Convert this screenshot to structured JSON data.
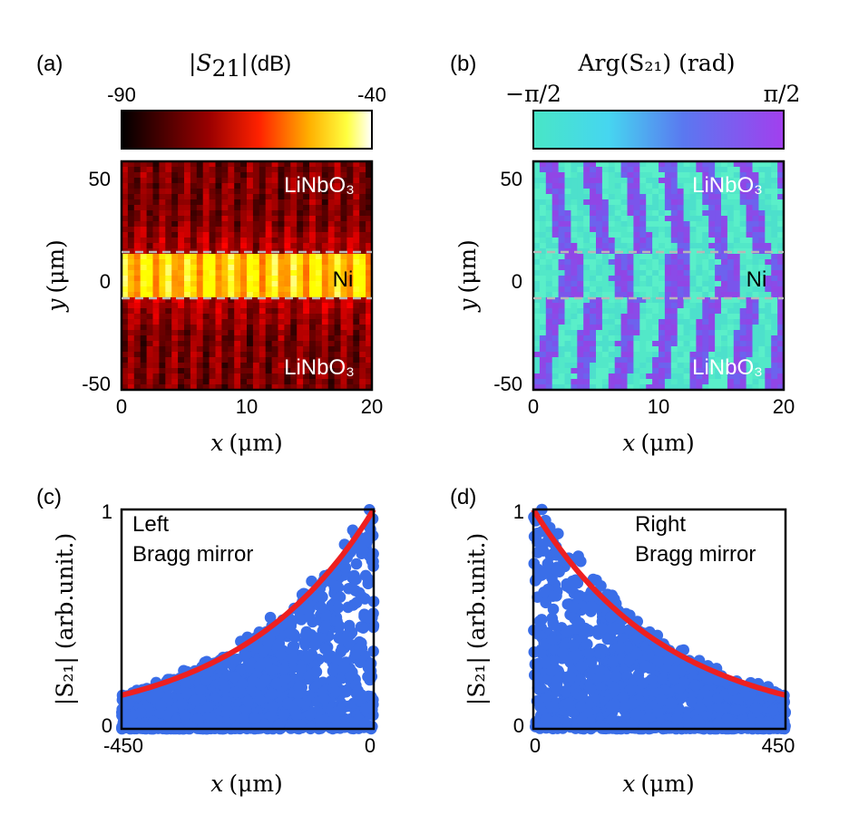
{
  "chart_data": [
    {
      "panel": "(a)",
      "type": "heatmap",
      "colorbar": {
        "title_math": "|S",
        "title_sub": "21",
        "title_close": "|",
        "title_unit": "(dB)",
        "min_label": "-90",
        "max_label": "-40",
        "colormap": "hot"
      },
      "xlabel_var": "x",
      "xlabel_unit": "(μm)",
      "ylabel_var": "y",
      "ylabel_unit": "(μm)",
      "xlim": [
        0,
        20
      ],
      "ylim": [
        -55,
        58
      ],
      "xticks": [
        "0",
        "10",
        "20"
      ],
      "yticks": [
        "50",
        "0",
        "-50"
      ],
      "stripe_y": [
        -10,
        13
      ],
      "regions": {
        "top": "LiNbO₃",
        "middle": "Ni",
        "bottom": "LiNbO₃"
      }
    },
    {
      "panel": "(b)",
      "type": "heatmap",
      "colorbar": {
        "title": "Arg(S₂₁) (rad)",
        "min_label": "−π/2",
        "max_label": "π/2",
        "colormap": "cyan-purple"
      },
      "xlabel_var": "x",
      "xlabel_unit": "(μm)",
      "ylabel_var": "y",
      "ylabel_unit": "(μm)",
      "xlim": [
        0,
        20
      ],
      "ylim": [
        -55,
        58
      ],
      "xticks": [
        "0",
        "10",
        "20"
      ],
      "yticks": [
        "50",
        "0",
        "-50"
      ],
      "stripe_y": [
        -10,
        13
      ],
      "regions": {
        "top": "LiNbO₃",
        "middle": "Ni",
        "bottom": "LiNbO₃"
      }
    },
    {
      "panel": "(c)",
      "type": "scatter",
      "annotation": [
        "Left",
        "Bragg mirror"
      ],
      "xlabel_var": "x",
      "xlabel_unit": "(μm)",
      "ylabel": "|S₂₁| (arb.unit.)",
      "xlim": [
        -450,
        0
      ],
      "ylim": [
        0,
        1
      ],
      "xticks": [
        "-450",
        "0"
      ],
      "yticks": [
        "1",
        "0"
      ],
      "fit": {
        "type": "exponential",
        "decay_length_um": 240,
        "direction": "left",
        "color": "#ee2020"
      },
      "point_color": "#3a6ee8"
    },
    {
      "panel": "(d)",
      "type": "scatter",
      "annotation": [
        "Right",
        "Bragg mirror"
      ],
      "xlabel_var": "x",
      "xlabel_unit": "(μm)",
      "ylabel": "|S₂₁| (arb.unit.)",
      "xlim": [
        0,
        450
      ],
      "ylim": [
        0,
        1
      ],
      "xticks": [
        "0",
        "450"
      ],
      "yticks": [
        "1",
        "0"
      ],
      "fit": {
        "type": "exponential",
        "decay_length_um": 240,
        "direction": "right",
        "color": "#ee2020"
      },
      "point_color": "#3a6ee8"
    }
  ]
}
